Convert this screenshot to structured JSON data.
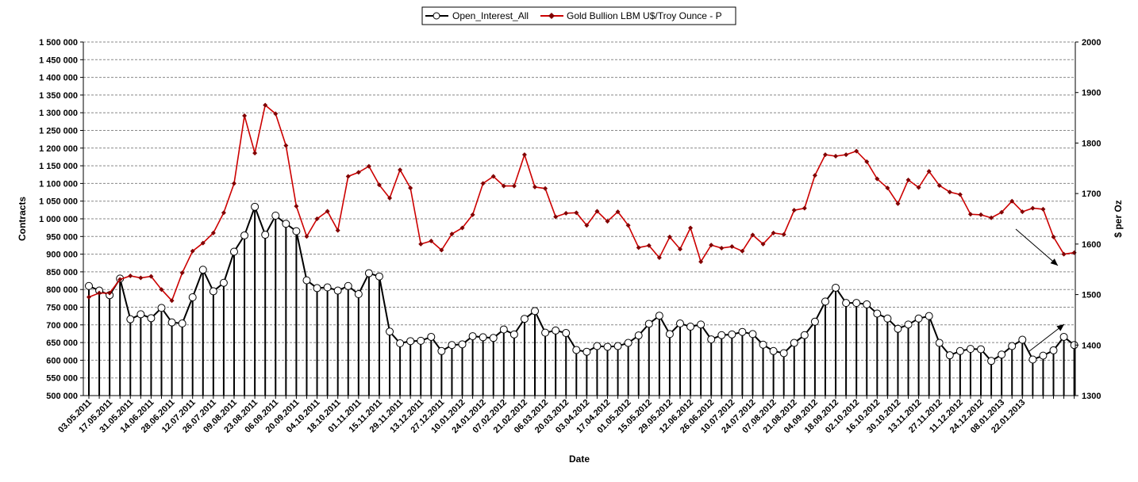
{
  "chart_data": {
    "type": "line",
    "xlabel": "Date",
    "ylabel_left": "Contracts",
    "ylabel_right": "$ per Oz",
    "y_left_range": [
      500000,
      1500000
    ],
    "y_left_step": 50000,
    "y_right_range": [
      1300,
      2000
    ],
    "y_right_step": 100,
    "grid": "horizontal dashed",
    "legend_position": "top-center",
    "x_tick_labels": [
      "03.05.2011",
      "17.05.2011",
      "31.05.2011",
      "14.06.2011",
      "28.06.2011",
      "12.07.2011",
      "26.07.2011",
      "09.08.2011",
      "23.08.2011",
      "06.09.2011",
      "20.09.2011",
      "04.10.2011",
      "18.10.2011",
      "01.11.2011",
      "15.11.2011",
      "29.11.2011",
      "13.12.2011",
      "27.12.2011",
      "10.01.2012",
      "24.01.2012",
      "07.02.2012",
      "21.02.2012",
      "06.03.2012",
      "20.03.2012",
      "03.04.2012",
      "17.04.2012",
      "01.05.2012",
      "15.05.2012",
      "29.05.2012",
      "12.06.2012",
      "26.06.2012",
      "10.07.2012",
      "24.07.2012",
      "07.08.2012",
      "21.08.2012",
      "04.09.2012",
      "18.09.2012",
      "02.10.2012",
      "16.10.2012",
      "30.10.2012",
      "13.11.2012",
      "27.11.2012",
      "11.12.2012",
      "24.12.2012",
      "08.01.2013",
      "22.01.2013"
    ],
    "series": [
      {
        "name": "Open_Interest_All",
        "axis": "left",
        "color": "#000000",
        "values": [
          810000,
          797000,
          784000,
          831000,
          716000,
          730000,
          719000,
          748000,
          707000,
          704000,
          778000,
          856000,
          795000,
          819000,
          907000,
          953000,
          1034000,
          955000,
          1009000,
          986000,
          965000,
          826000,
          804000,
          806000,
          797000,
          810000,
          787000,
          846000,
          837000,
          681000,
          648000,
          654000,
          655000,
          666000,
          626000,
          643000,
          645000,
          668000,
          665000,
          663000,
          687000,
          673000,
          717000,
          739000,
          678000,
          684000,
          677000,
          629000,
          624000,
          640000,
          638000,
          640000,
          649000,
          670000,
          703000,
          726000,
          674000,
          704000,
          695000,
          701000,
          659000,
          671000,
          673000,
          680000,
          674000,
          644000,
          626000,
          620000,
          649000,
          671000,
          709000,
          766000,
          805000,
          762000,
          762000,
          758000,
          732000,
          718000,
          689000,
          701000,
          718000,
          725000,
          649000,
          614000,
          626000,
          632000,
          631000,
          598000,
          616000,
          640000,
          658000,
          602000,
          613000,
          628000,
          666000,
          643000
        ]
      },
      {
        "name": "Gold Bullion LBM U$/Troy Ounce - P",
        "axis": "right",
        "color": "#cc0000",
        "values": [
          1495,
          1503,
          1503,
          1530,
          1537,
          1533,
          1536,
          1510,
          1488,
          1543,
          1586,
          1602,
          1622,
          1662,
          1720,
          1854,
          1780,
          1875,
          1858,
          1795,
          1675,
          1615,
          1650,
          1665,
          1627,
          1734,
          1742,
          1754,
          1717,
          1691,
          1747,
          1711,
          1600,
          1606,
          1588,
          1620,
          1632,
          1658,
          1720,
          1734,
          1715,
          1715,
          1777,
          1713,
          1710,
          1654,
          1661,
          1662,
          1637,
          1665,
          1645,
          1664,
          1637,
          1593,
          1597,
          1573,
          1614,
          1590,
          1632,
          1565,
          1598,
          1592,
          1595,
          1586,
          1618,
          1600,
          1622,
          1619,
          1667,
          1671,
          1736,
          1777,
          1774,
          1777,
          1784,
          1763,
          1729,
          1711,
          1680,
          1727,
          1712,
          1744,
          1716,
          1703,
          1698,
          1659,
          1658,
          1652,
          1663,
          1685,
          1664,
          1671,
          1669,
          1614,
          1580,
          1583
        ]
      }
    ]
  }
}
